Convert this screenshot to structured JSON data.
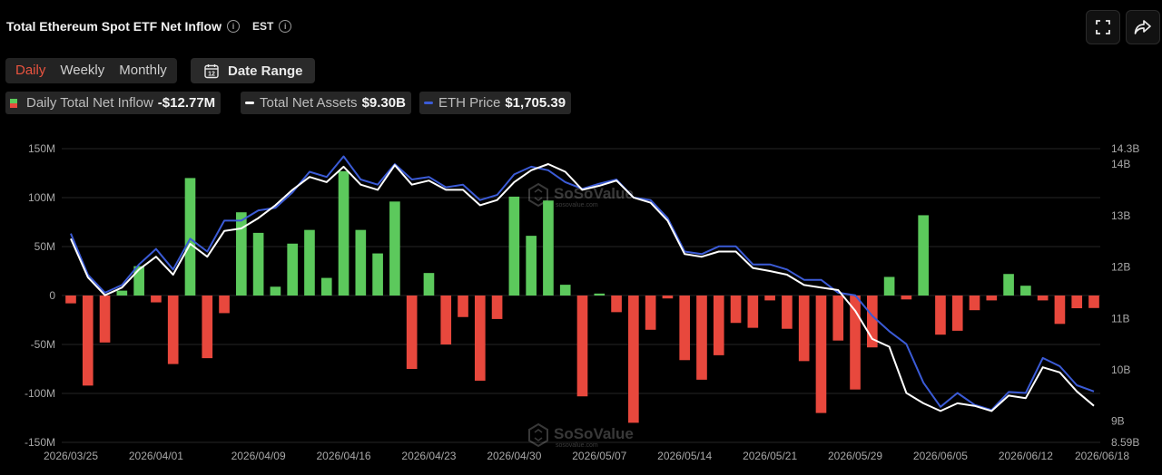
{
  "header": {
    "title": "Total Ethereum Spot ETF Net Inflow",
    "timezone": "EST"
  },
  "tabs": [
    {
      "label": "Daily",
      "active": true
    },
    {
      "label": "Weekly",
      "active": false
    },
    {
      "label": "Monthly",
      "active": false
    }
  ],
  "date_range": {
    "label": "Date Range",
    "icon": "calendar-icon",
    "icon_text": "12"
  },
  "legend": [
    {
      "label": "Daily Total Net Inflow",
      "value": "-$12.77M"
    },
    {
      "label": "Total Net Assets",
      "value": "$9.30B"
    },
    {
      "label": "ETH Price",
      "value": "$1,705.39"
    }
  ],
  "buttons": {
    "fullscreen": "fullscreen-icon",
    "share": "share-icon"
  },
  "watermark": {
    "brand": "SoSoValue",
    "site": "sosovalue.com"
  },
  "colors": {
    "positive": "#5cc95c",
    "negative": "#e8483d",
    "assets_line": "#ffffff",
    "price_line": "#3b5bd6",
    "active_tab": "#e8533f",
    "background": "#000000"
  },
  "chart_data": {
    "type": "bar",
    "x": [
      "2026/03/25",
      "2026/03/26",
      "2026/03/27",
      "2026/03/30",
      "2026/03/31",
      "2026/04/01",
      "2026/04/02",
      "2026/04/03",
      "2026/04/06",
      "2026/04/07",
      "2026/04/08",
      "2026/04/09",
      "2026/04/10",
      "2026/04/13",
      "2026/04/14",
      "2026/04/15",
      "2026/04/16",
      "2026/04/17",
      "2026/04/20",
      "2026/04/21",
      "2026/04/22",
      "2026/04/23",
      "2026/04/24",
      "2026/04/27",
      "2026/04/28",
      "2026/04/29",
      "2026/04/30",
      "2026/05/01",
      "2026/05/04",
      "2026/05/05",
      "2026/05/06",
      "2026/05/07",
      "2026/05/08",
      "2026/05/11",
      "2026/05/12",
      "2026/05/13",
      "2026/05/14",
      "2026/05/15",
      "2026/05/18",
      "2026/05/19",
      "2026/05/20",
      "2026/05/21",
      "2026/05/22",
      "2026/05/26",
      "2026/05/27",
      "2026/05/28",
      "2026/05/29",
      "2026/06/01",
      "2026/06/02",
      "2026/06/03",
      "2026/06/04",
      "2026/06/05",
      "2026/06/08",
      "2026/06/09",
      "2026/06/10",
      "2026/06/11",
      "2026/06/12",
      "2026/06/15",
      "2026/06/16",
      "2026/06/17",
      "2026/06/18"
    ],
    "tick_labels": [
      "2026/03/25",
      "2026/04/01",
      "2026/04/09",
      "2026/04/16",
      "2026/04/23",
      "2026/04/30",
      "2026/05/07",
      "2026/05/14",
      "2026/05/21",
      "2026/05/29",
      "2026/06/05",
      "2026/06/12",
      "2026/06/18"
    ],
    "series": [
      {
        "name": "Daily Total Net Inflow",
        "axis": "left",
        "unit": "M",
        "values": [
          -8,
          -92,
          -48,
          5,
          30,
          -7,
          -70,
          120,
          -64,
          -18,
          85,
          64,
          9,
          53,
          67,
          18,
          127,
          67,
          43,
          96,
          -75,
          23,
          -50,
          -22,
          -87,
          -24,
          101,
          61,
          97,
          11,
          -103,
          2,
          -17,
          -130,
          -35,
          -3,
          -66,
          -86,
          -61,
          -28,
          -33,
          -5,
          -34,
          -67,
          -120,
          -46,
          -96,
          -53,
          19,
          -4,
          82,
          -40,
          -36,
          -15,
          -5,
          22,
          10,
          -5,
          -29,
          -13,
          -12.77
        ]
      },
      {
        "name": "Total Net Assets",
        "axis": "right",
        "unit": "B",
        "values": [
          12.55,
          11.8,
          11.45,
          11.6,
          11.95,
          12.2,
          11.85,
          12.45,
          12.2,
          12.7,
          12.75,
          12.95,
          13.2,
          13.5,
          13.75,
          13.65,
          13.95,
          13.6,
          13.5,
          13.98,
          13.6,
          13.68,
          13.5,
          13.5,
          13.2,
          13.3,
          13.65,
          13.88,
          14.0,
          13.85,
          13.5,
          13.58,
          13.68,
          13.35,
          13.25,
          12.9,
          12.25,
          12.2,
          12.3,
          12.3,
          11.98,
          11.92,
          11.85,
          11.65,
          11.6,
          11.55,
          11.15,
          10.6,
          10.45,
          9.55,
          9.35,
          9.2,
          9.35,
          9.3,
          9.2,
          9.5,
          9.45,
          10.05,
          9.95,
          9.58,
          9.3
        ]
      },
      {
        "name": "ETH Price",
        "axis": "right",
        "unit": "B-scale",
        "values": [
          12.65,
          11.85,
          11.5,
          11.65,
          12.05,
          12.35,
          11.95,
          12.55,
          12.3,
          12.9,
          12.9,
          13.1,
          13.15,
          13.45,
          13.85,
          13.75,
          14.15,
          13.7,
          13.6,
          14.0,
          13.7,
          13.75,
          13.55,
          13.6,
          13.3,
          13.4,
          13.8,
          13.95,
          13.88,
          13.65,
          13.52,
          13.62,
          13.7,
          13.35,
          13.3,
          12.95,
          12.3,
          12.25,
          12.4,
          12.4,
          12.05,
          12.05,
          11.95,
          11.75,
          11.75,
          11.5,
          11.45,
          11.05,
          10.75,
          10.5,
          9.75,
          9.28,
          9.55,
          9.32,
          9.22,
          9.57,
          9.55,
          10.23,
          10.07,
          9.7,
          9.58
        ]
      }
    ],
    "y_left": {
      "ticks": [
        "150M",
        "100M",
        "50M",
        "0",
        "-50M",
        "-100M",
        "-150M"
      ],
      "range": [
        -150,
        150
      ]
    },
    "y_right": {
      "ticks": [
        "14.3B",
        "14B",
        "13B",
        "12B",
        "11B",
        "10B",
        "9B",
        "8.59B"
      ],
      "range": [
        8.59,
        14.3
      ]
    },
    "grid": true
  }
}
